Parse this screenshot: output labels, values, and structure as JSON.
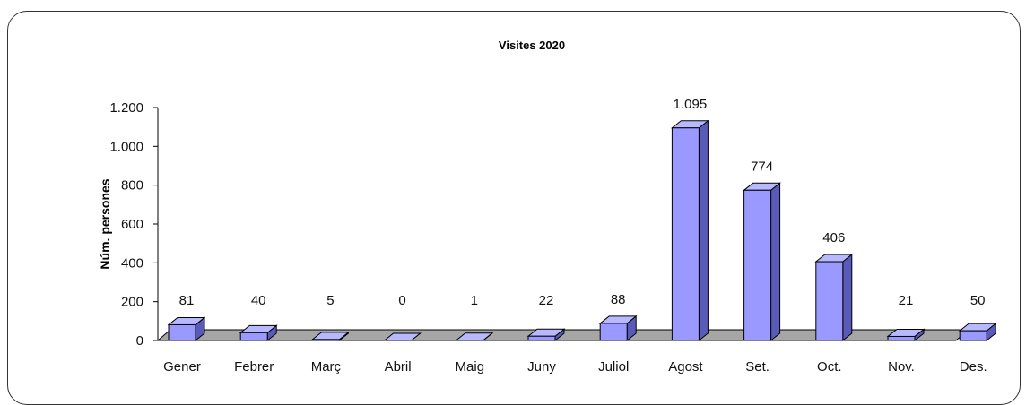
{
  "chart_data": {
    "type": "bar",
    "title": "Visites 2020",
    "xlabel": "",
    "ylabel": "Núm. persones",
    "categories": [
      "Gener",
      "Febrer",
      "Març",
      "Abril",
      "Maig",
      "Juny",
      "Juliol",
      "Agost",
      "Set.",
      "Oct.",
      "Nov.",
      "Des."
    ],
    "values": [
      81,
      40,
      5,
      0,
      1,
      22,
      88,
      1095,
      774,
      406,
      21,
      50
    ],
    "data_labels": [
      "81",
      "40",
      "5",
      "0",
      "1",
      "22",
      "88",
      "1.095",
      "774",
      "406",
      "21",
      "50"
    ],
    "yticks": [
      0,
      200,
      400,
      600,
      800,
      1000,
      1200
    ],
    "ytick_labels": [
      "0",
      "200",
      "400",
      "600",
      "800",
      "1.000",
      "1.200"
    ],
    "ylim": [
      0,
      1200
    ],
    "grid": false,
    "legend": "none",
    "colors": {
      "bar_front": "#9999ff",
      "bar_side": "#5a5ab8",
      "bar_top": "#b8b8ff",
      "floor": "#a6a6a6",
      "outline": "#000000"
    }
  }
}
